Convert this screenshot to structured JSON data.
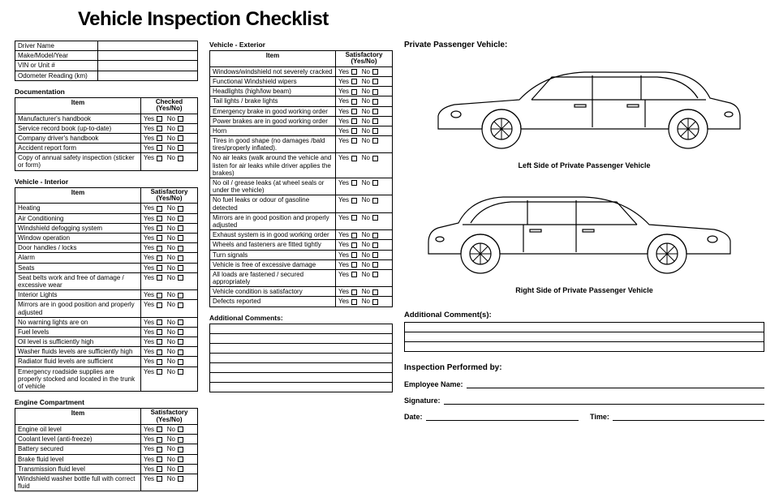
{
  "title": "Vehicle Inspection Checklist",
  "infoFields": [
    "Driver Name",
    "Make/Model/Year",
    "VIN  or Unit #",
    "Odometer Reading (km)"
  ],
  "sections": {
    "documentation": {
      "label": "Documentation",
      "header": {
        "item": "Item",
        "check": "Checked (Yes/No)"
      },
      "rows": [
        "Manufacturer's handbook",
        "Service record book (up-to-date)",
        "Company driver's handbook",
        "Accident report form",
        "Copy of annual safety inspection (sticker or form)"
      ]
    },
    "interior": {
      "label": "Vehicle - Interior",
      "header": {
        "item": "Item",
        "check": "Satisfactory (Yes/No)"
      },
      "rows": [
        "Heating",
        "Air Conditioning",
        "Windshield defogging system",
        "Window operation",
        "Door handles / locks",
        "Alarm",
        "Seats",
        "Seat belts work and free of damage / excessive wear",
        "Interior Lights",
        "Mirrors are in good position and properly adjusted",
        "No warning lights are on",
        "Fuel levels",
        "Oil level is sufficiently high",
        "Washer fluids levels are sufficiently high",
        "Radiator fluid levels are sufficient",
        "Emergency roadside supplies are properly stocked and located in the trunk of vehicle"
      ]
    },
    "engine": {
      "label": "Engine Compartment",
      "header": {
        "item": "Item",
        "check": "Satisfactory (Yes/No)"
      },
      "rows": [
        "Engine oil level",
        "Coolant level (anti-freeze)",
        "Battery secured",
        "Brake fluid level",
        "Transmission fluid level",
        "Windshield washer bottle full with correct fluid"
      ]
    },
    "exterior": {
      "label": "Vehicle - Exterior",
      "header": {
        "item": "Item",
        "check": "Satisfactory (Yes/No)"
      },
      "rows": [
        "Windows/windshield not severely cracked",
        "Functional Windshield wipers",
        "Headlights (high/low beam)",
        "Tail lights / brake lights",
        "Emergency brake in good working order",
        "Power brakes are in good working order",
        "Horn",
        "Tires in good shape (no damages /bald tires/properly inflated).",
        "No air leaks (walk around  the vehicle and listen for air leaks while driver applies the brakes)",
        "No oil / grease leaks (at wheel seals or under the vehicle)",
        "No fuel leaks or odour of gasoline detected",
        "Mirrors are in good position and properly adjusted",
        "Exhaust system is in good working order",
        "Wheels and fasteners are fitted tightly",
        "Turn signals",
        "Vehicle is free of excessive damage",
        "All loads are fastened / secured appropriately",
        "Vehicle condition is satisfactory",
        "Defects reported"
      ]
    }
  },
  "additionalCommentsLabel": "Additional Comments:",
  "rightPanel": {
    "heading": "Private Passenger Vehicle:",
    "leftCaption": "Left Side of Private Passenger Vehicle",
    "rightCaption": "Right Side of Private Passenger Vehicle",
    "addlComments": "Additional Comment(s):",
    "inspTitle": "Inspection Performed by:",
    "empName": "Employee Name:",
    "signature": "Signature:",
    "date": "Date:",
    "time": "Time:"
  },
  "yn": {
    "yes": "Yes",
    "no": "No"
  },
  "colors": {
    "text": "#000000",
    "background": "#ffffff",
    "border": "#000000"
  }
}
